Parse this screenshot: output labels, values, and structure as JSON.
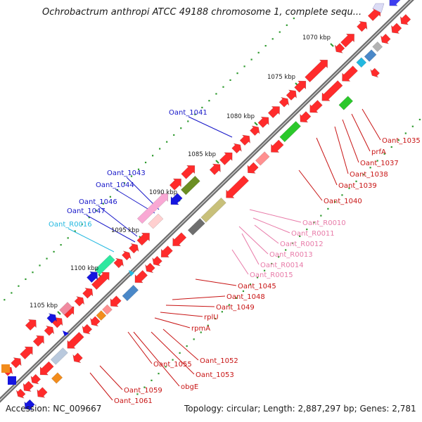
{
  "title": "Ochrobactrum anthropi ATCC 49188 chromosome 1, complete sequ...",
  "footer": {
    "accession": "Accession: NC_009667",
    "topology": "Topology: circular; Length: 2,887,297 bp; Genes: 2,781"
  },
  "scale_ticks": [
    "1070 kbp",
    "1075 kbp",
    "1080 kbp",
    "1085 kbp",
    "1090 kbp",
    "1095 kbp",
    "1100 kbp",
    "1105 kbp"
  ],
  "labels_left": [
    {
      "text": "Oant_1041",
      "color": "#1515c8"
    },
    {
      "text": "Oant_1043",
      "color": "#1515c8"
    },
    {
      "text": "Oant_1044",
      "color": "#1515c8"
    },
    {
      "text": "Oant_1046",
      "color": "#1515c8"
    },
    {
      "text": "Oant_1047",
      "color": "#1515c8"
    },
    {
      "text": "Oant_R0016",
      "color": "#22b8e0"
    }
  ],
  "labels_right": [
    {
      "text": "Oant_1035",
      "color": "#c81414"
    },
    {
      "text": "prfA",
      "color": "#c81414"
    },
    {
      "text": "Oant_1037",
      "color": "#c81414"
    },
    {
      "text": "Oant_1038",
      "color": "#c81414"
    },
    {
      "text": "Oant_1039",
      "color": "#c81414"
    },
    {
      "text": "Oant_1040",
      "color": "#c81414"
    },
    {
      "text": "Oant_R0010",
      "color": "#e87aa8"
    },
    {
      "text": "Oant_R0011",
      "color": "#e87aa8"
    },
    {
      "text": "Oant_R0012",
      "color": "#e87aa8"
    },
    {
      "text": "Oant_R0013",
      "color": "#e87aa8"
    },
    {
      "text": "Oant_R0014",
      "color": "#e87aa8"
    },
    {
      "text": "Oant_R0015",
      "color": "#e87aa8"
    },
    {
      "text": "Oant_1045",
      "color": "#c81414"
    },
    {
      "text": "Oant_1048",
      "color": "#c81414"
    },
    {
      "text": "Oant_1049",
      "color": "#c81414"
    },
    {
      "text": "rplU",
      "color": "#c81414"
    },
    {
      "text": "rpmA",
      "color": "#c81414"
    },
    {
      "text": "Oant_1052",
      "color": "#c81414"
    },
    {
      "text": "Oant_1055",
      "color": "#c81414"
    },
    {
      "text": "Oant_1053",
      "color": "#c81414"
    },
    {
      "text": "obgE",
      "color": "#c81414"
    },
    {
      "text": "Oant_1059",
      "color": "#c81414"
    },
    {
      "text": "Oant_1061",
      "color": "#c81414"
    }
  ]
}
